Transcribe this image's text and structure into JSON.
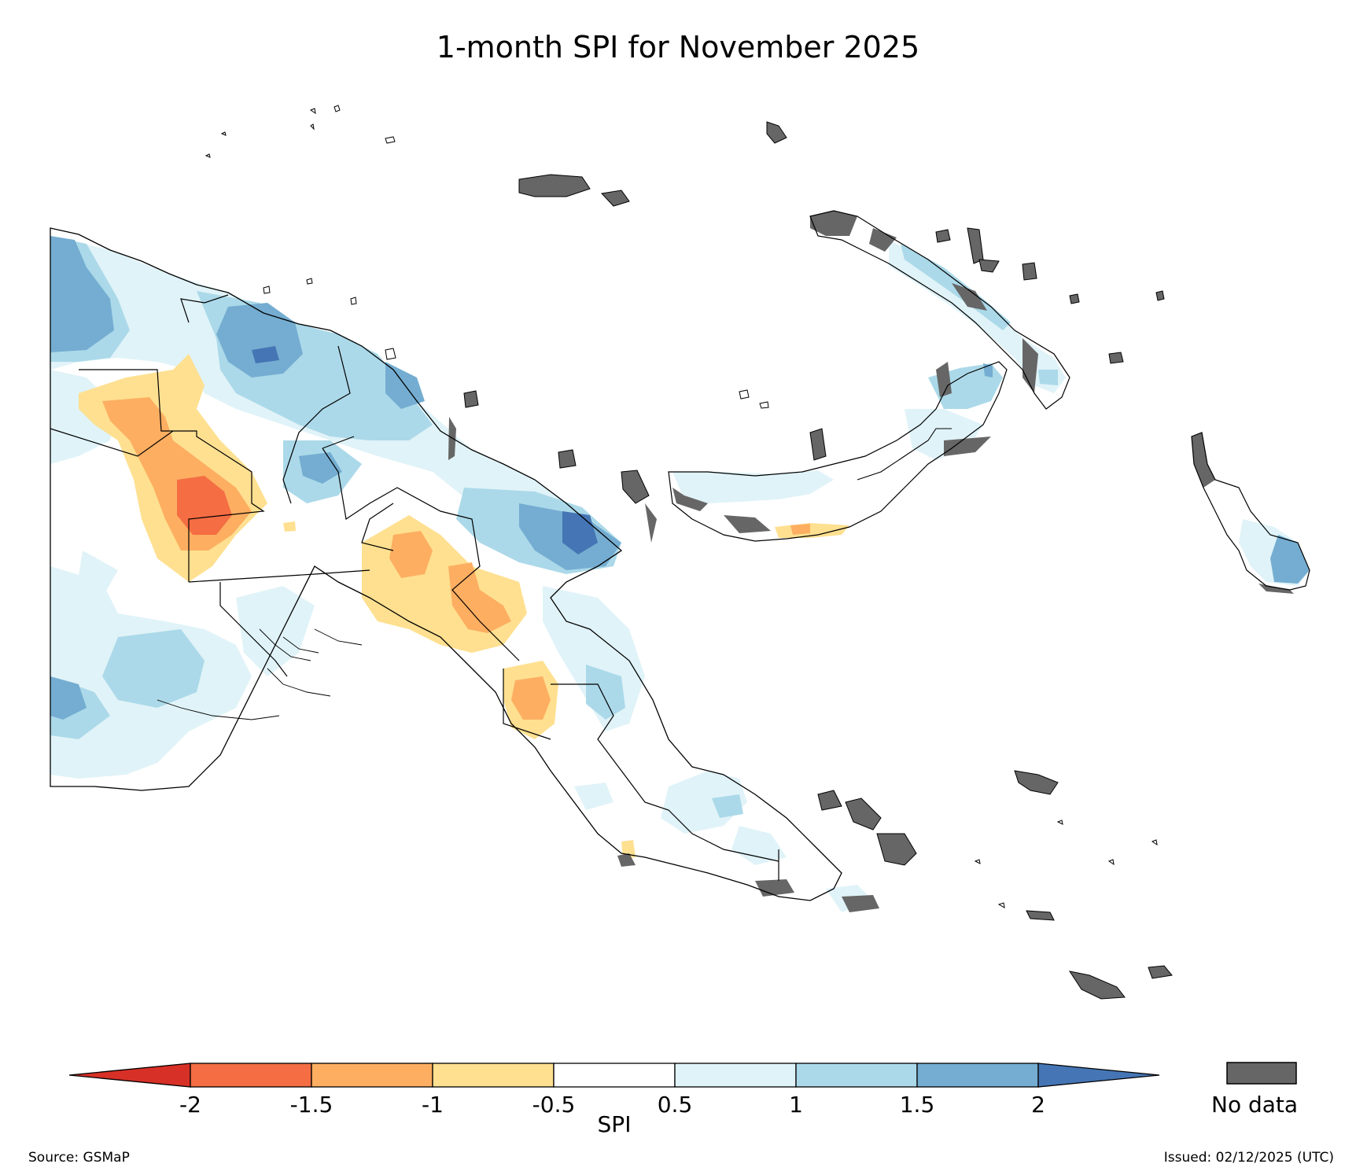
{
  "title": "1-month SPI for November 2025",
  "colorbar": {
    "label": "SPI",
    "ticks": [
      "-2",
      "-1.5",
      "-1",
      "-0.5",
      "0.5",
      "1",
      "1.5",
      "2"
    ],
    "bins": [
      {
        "range": "< -2",
        "color": "#d73027"
      },
      {
        "range": "-2 to -1.5",
        "color": "#f46d43"
      },
      {
        "range": "-1.5 to -1",
        "color": "#fdae61"
      },
      {
        "range": "-1 to -0.5",
        "color": "#fee090"
      },
      {
        "range": "-0.5 to 0.5",
        "color": "#ffffff"
      },
      {
        "range": "0.5 to 1",
        "color": "#e0f3f8"
      },
      {
        "range": "1 to 1.5",
        "color": "#abd9e9"
      },
      {
        "range": "1.5 to 2",
        "color": "#74add1"
      },
      {
        "range": "> 2",
        "color": "#4575b4"
      }
    ]
  },
  "no_data": {
    "label": "No data",
    "color": "#666666"
  },
  "source": "Source: GSMaP",
  "issued": "Issued: 02/12/2025 (UTC)",
  "map": {
    "region": "Papua New Guinea",
    "variable": "1-month SPI",
    "dry_anomaly_areas": [
      "western highlands",
      "central highlands",
      "Huon/Morobe inland",
      "New Britain south coast"
    ],
    "wet_anomaly_areas": [
      "Sepik / northern coast",
      "Madang coast",
      "western border",
      "New Ireland",
      "Bougainville south"
    ]
  }
}
